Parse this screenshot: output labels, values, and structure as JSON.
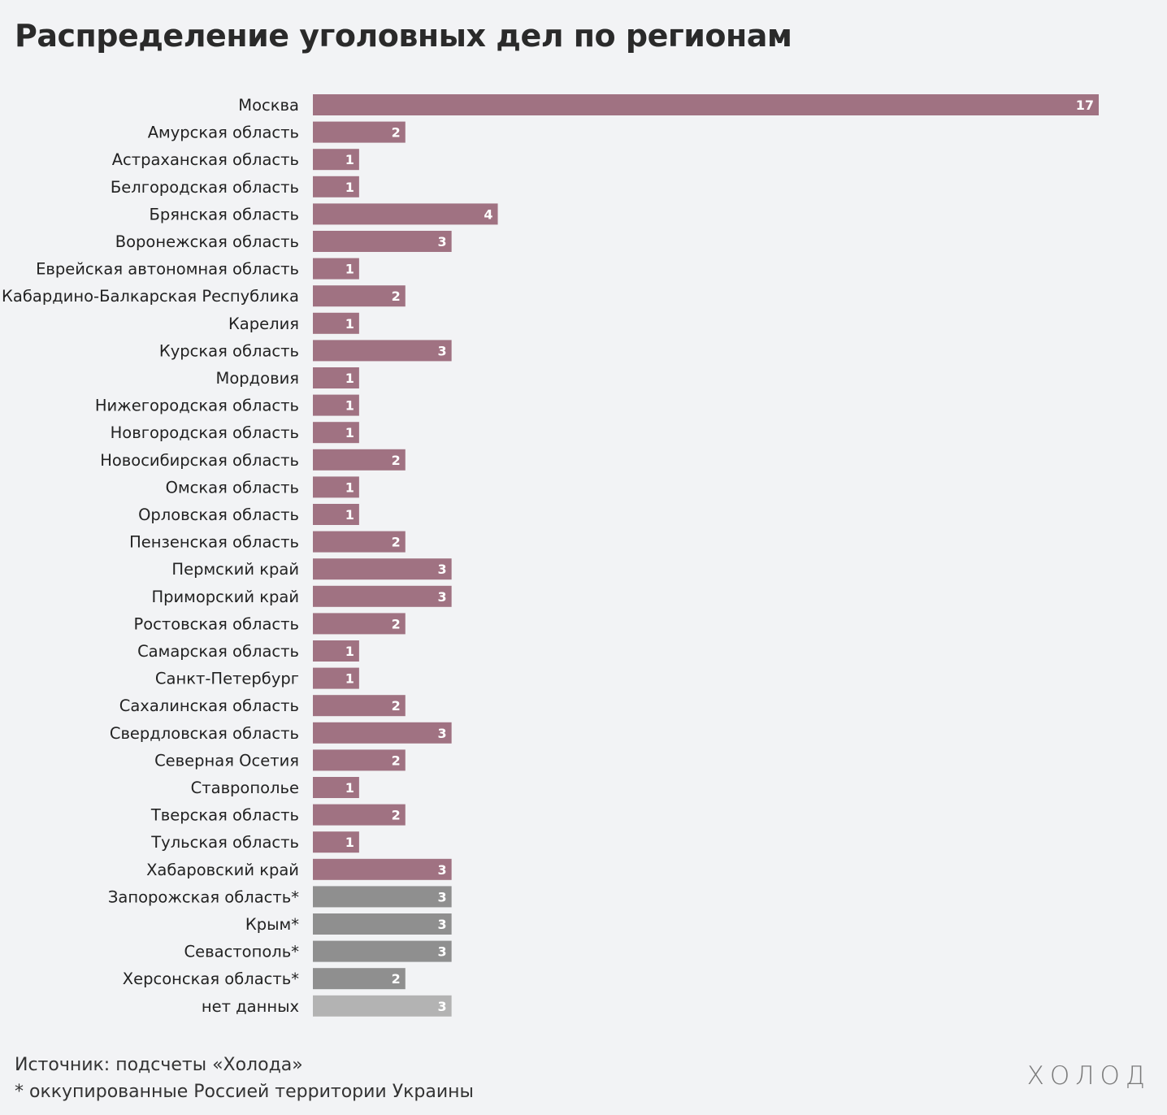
{
  "title": "Распределение уголовных дел по регионам",
  "source": "Источник: подсчеты «Холода»",
  "note": "* оккупированные Россией территории Украины",
  "logo": "ХОЛОД",
  "colors": {
    "russia": "#a07282",
    "occupied": "#8f8f8f",
    "no_data": "#b3b3b3",
    "background": "#f2f3f5"
  },
  "chart_data": {
    "type": "bar",
    "orientation": "horizontal",
    "title": "Распределение уголовных дел по регионам",
    "xlabel": "",
    "ylabel": "",
    "xlim": [
      0,
      17
    ],
    "grid": false,
    "categories": [
      "Москва",
      "Амурская область",
      "Астраханская область",
      "Белгородская область",
      "Брянская область",
      "Воронежская область",
      "Еврейская автономная область",
      "Кабардино-Балкарская Республика",
      "Карелия",
      "Курская область",
      "Мордовия",
      "Нижегородская область",
      "Новгородская область",
      "Новосибирская область",
      "Омская область",
      "Орловская область",
      "Пензенская область",
      "Пермский край",
      "Приморский край",
      "Ростовская область",
      "Самарская область",
      "Санкт-Петербург",
      "Сахалинская область",
      "Свердловская область",
      "Северная Осетия",
      "Ставрополье",
      "Тверская область",
      "Тульская область",
      "Хабаровский край",
      "Запорожская область*",
      "Крым*",
      "Севастополь*",
      "Херсонская область*",
      "нет данных"
    ],
    "values": [
      17,
      2,
      1,
      1,
      4,
      3,
      1,
      2,
      1,
      3,
      1,
      1,
      1,
      2,
      1,
      1,
      2,
      3,
      3,
      2,
      1,
      1,
      2,
      3,
      2,
      1,
      2,
      1,
      3,
      3,
      3,
      3,
      2,
      3
    ],
    "groups": [
      "russia",
      "russia",
      "russia",
      "russia",
      "russia",
      "russia",
      "russia",
      "russia",
      "russia",
      "russia",
      "russia",
      "russia",
      "russia",
      "russia",
      "russia",
      "russia",
      "russia",
      "russia",
      "russia",
      "russia",
      "russia",
      "russia",
      "russia",
      "russia",
      "russia",
      "russia",
      "russia",
      "russia",
      "russia",
      "occupied",
      "occupied",
      "occupied",
      "occupied",
      "no_data"
    ]
  }
}
